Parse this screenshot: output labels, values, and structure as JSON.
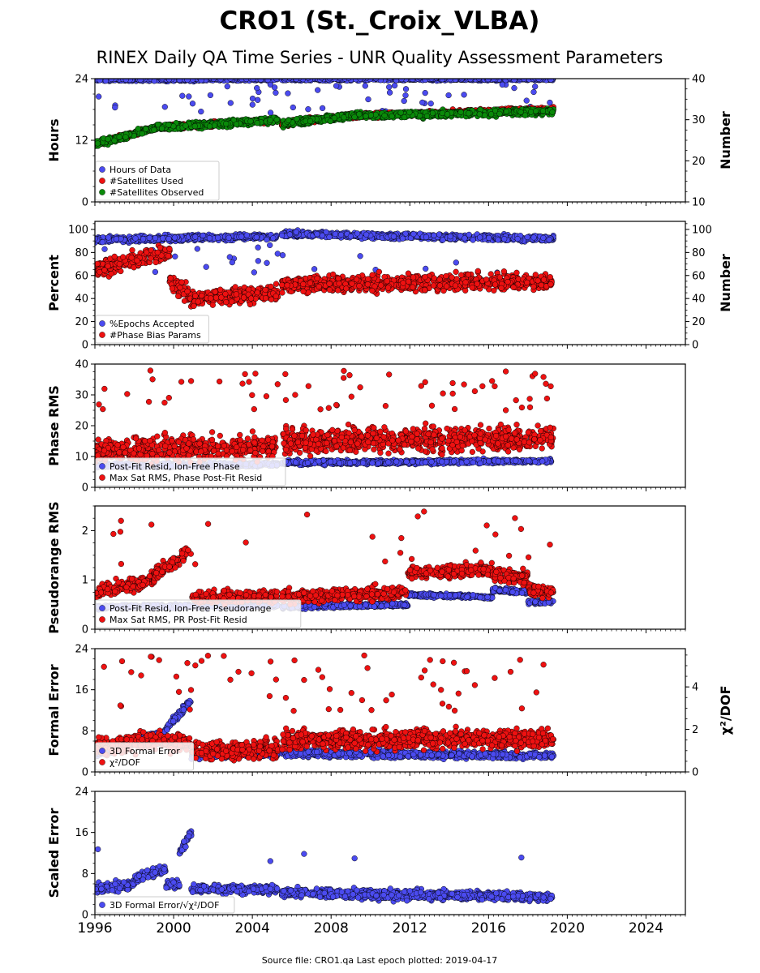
{
  "title": "CRO1 (St._Croix_VLBA)",
  "subtitle": "RINEX Daily QA Time Series - UNR Quality Assessment Parameters",
  "footer": "Source file: CRO1.qa Last epoch plotted: 2019-04-17",
  "colors": {
    "blue": "#4b4bf0",
    "red": "#ee1111",
    "green": "#0a8a0a"
  },
  "chart_data": [
    {
      "type": "scatter",
      "ylabel": "Hours",
      "ylabel_right": "Number",
      "xlim": [
        1996,
        2026
      ],
      "ylim": [
        0,
        24
      ],
      "ylim_right": [
        10,
        40
      ],
      "yticks": [
        "0",
        "12",
        "24"
      ],
      "yticks_right": [
        "10",
        "20",
        "30",
        "40"
      ],
      "legend_loc": "lower-left",
      "series": [
        {
          "name": "Hours of Data",
          "color": "blue",
          "axis": "left",
          "segments": [
            [
              1996.0,
              2005.3,
              23.8,
              23.9
            ],
            [
              2005.5,
              2019.3,
              23.9,
              23.95
            ]
          ],
          "spread": 0.3,
          "outlier_prob": 0.03,
          "outlier_range": [
            17,
            23
          ]
        },
        {
          "name": "#Satellites Used",
          "color": "red",
          "axis": "right",
          "segments": [
            [
              1996.0,
              1999.0,
              24,
              28
            ],
            [
              1999.0,
              2005.3,
              28,
              30
            ],
            [
              2005.5,
              2009.0,
              29,
              31
            ],
            [
              2009.0,
              2019.3,
              31,
              32.5
            ]
          ],
          "spread": 0.6
        },
        {
          "name": "#Satellites Observed",
          "color": "green",
          "axis": "right",
          "segments": [
            [
              1996.0,
              1999.0,
              24,
              28
            ],
            [
              1999.0,
              2005.3,
              28,
              30
            ],
            [
              2005.5,
              2009.0,
              29,
              31
            ],
            [
              2009.0,
              2019.3,
              31,
              32
            ]
          ],
          "spread": 0.8
        }
      ]
    },
    {
      "type": "scatter",
      "ylabel": "Percent",
      "ylabel_right": "Number",
      "xlim": [
        1996,
        2026
      ],
      "ylim": [
        0,
        107
      ],
      "ylim_right": [
        0,
        107
      ],
      "yticks": [
        "0",
        "20",
        "40",
        "60",
        "80",
        "100"
      ],
      "yticks_right": [
        "0",
        "20",
        "40",
        "60",
        "80",
        "100"
      ],
      "legend_loc": "lower-left",
      "series": [
        {
          "name": "%Epochs Accepted",
          "color": "blue",
          "axis": "left",
          "segments": [
            [
              1996.0,
              2005.3,
              91,
              94
            ],
            [
              2005.5,
              2019.3,
              96,
              92
            ]
          ],
          "spread": 2.5,
          "outlier_prob": 0.02,
          "outlier_range": [
            62,
            88
          ]
        },
        {
          "name": "#Phase Bias Params",
          "color": "red",
          "axis": "right",
          "segments": [
            [
              1996.0,
              1999.8,
              65,
              80
            ],
            [
              1999.8,
              2001.0,
              55,
              40
            ],
            [
              2001.0,
              2005.3,
              40,
              45
            ],
            [
              2005.5,
              2019.3,
              52,
              55
            ]
          ],
          "spread": 7
        }
      ]
    },
    {
      "type": "scatter",
      "ylabel": "Phase RMS",
      "xlim": [
        1996,
        2026
      ],
      "ylim": [
        0,
        40
      ],
      "yticks": [
        "0",
        "10",
        "20",
        "30",
        "40"
      ],
      "legend_loc": "lower-left",
      "series": [
        {
          "name": "Post-Fit Resid, Ion-Free Phase",
          "color": "blue",
          "axis": "left",
          "segments": [
            [
              1996.0,
              2005.3,
              7,
              7.5
            ],
            [
              2005.5,
              2019.3,
              8,
              8.5
            ]
          ],
          "spread": 0.7
        },
        {
          "name": "Max Sat RMS, Phase Post-Fit Resid",
          "color": "red",
          "axis": "left",
          "segments": [
            [
              1996.0,
              2005.3,
              12,
              13
            ],
            [
              2005.5,
              2019.3,
              15,
              16
            ]
          ],
          "spread": 4,
          "outlier_prob": 0.04,
          "outlier_range": [
            25,
            38
          ]
        }
      ]
    },
    {
      "type": "scatter",
      "ylabel": "Pseudorange RMS",
      "xlim": [
        1996,
        2026
      ],
      "ylim": [
        0,
        2.5
      ],
      "yticks": [
        "0",
        "1",
        "2"
      ],
      "legend_loc": "lower-left",
      "series": [
        {
          "name": "Post-Fit Resid, Ion-Free Pseudorange",
          "color": "blue",
          "axis": "left",
          "segments": [
            [
              1996.0,
              2005.3,
              0.45,
              0.48
            ],
            [
              2005.5,
              2011.9,
              0.45,
              0.5
            ],
            [
              2011.9,
              2016.2,
              0.7,
              0.65
            ],
            [
              2016.2,
              2018.0,
              0.8,
              0.75
            ],
            [
              2018.0,
              2019.3,
              0.55,
              0.55
            ]
          ],
          "spread": 0.04
        },
        {
          "name": "Max Sat RMS, PR Post-Fit Resid",
          "color": "red",
          "axis": "left",
          "segments": [
            [
              1996.0,
              1999.0,
              0.75,
              1.0
            ],
            [
              1999.0,
              2000.9,
              1.1,
              1.6
            ],
            [
              2000.9,
              2005.3,
              0.65,
              0.65
            ],
            [
              2005.5,
              2011.9,
              0.65,
              0.75
            ],
            [
              2011.9,
              2016.2,
              1.15,
              1.2
            ],
            [
              2016.2,
              2018.0,
              1.1,
              1.05
            ],
            [
              2018.0,
              2019.3,
              0.8,
              0.75
            ]
          ],
          "spread": 0.13,
          "outlier_prob": 0.015,
          "outlier_range": [
            1.3,
            2.4
          ]
        }
      ]
    },
    {
      "type": "scatter",
      "ylabel": "Formal Error",
      "ylabel_right": "χ²/DOF",
      "xlim": [
        1996,
        2026
      ],
      "ylim": [
        0,
        24
      ],
      "ylim_right": [
        0,
        5.8
      ],
      "yticks": [
        "0",
        "8",
        "16",
        "24"
      ],
      "yticks_right": [
        "0",
        "2",
        "4"
      ],
      "legend_loc": "lower-left",
      "series": [
        {
          "name": "3D Formal Error",
          "color": "blue",
          "axis": "left",
          "segments": [
            [
              1996.0,
              1999.5,
              3.5,
              7.5
            ],
            [
              1999.5,
              2000.9,
              8,
              14
            ],
            [
              2000.9,
              2005.3,
              3.2,
              3.5
            ],
            [
              2005.5,
              2019.3,
              3.6,
              3.2
            ]
          ],
          "spread": 0.7
        },
        {
          "name": "χ²/DOF",
          "color": "red",
          "axis": "right",
          "segments": [
            [
              1996.0,
              1999.5,
              1.2,
              1.5
            ],
            [
              1999.5,
              2000.9,
              1.3,
              1.4
            ],
            [
              2000.9,
              2005.3,
              1.0,
              1.1
            ],
            [
              2005.5,
              2019.3,
              1.5,
              1.55
            ]
          ],
          "spread": 0.45,
          "outlier_prob": 0.03,
          "outlier_range": [
            2.8,
            5.5
          ]
        }
      ]
    },
    {
      "type": "scatter",
      "ylabel": "Scaled Error",
      "xlim": [
        1996,
        2026
      ],
      "ylim": [
        0,
        24
      ],
      "yticks": [
        "0",
        "8",
        "16",
        "24"
      ],
      "xticks": [
        "1996",
        "2000",
        "2004",
        "2008",
        "2012",
        "2016",
        "2020",
        "2024"
      ],
      "legend_loc": "lower-left",
      "series": [
        {
          "name": "3D Formal Error/√χ²/DOF",
          "color": "blue",
          "axis": "left",
          "segments": [
            [
              1996.0,
              1998.0,
              5,
              6
            ],
            [
              1998.0,
              1999.6,
              7,
              9
            ],
            [
              1999.6,
              2000.3,
              6,
              6
            ],
            [
              2000.3,
              2000.9,
              12,
              16
            ],
            [
              2000.9,
              2005.3,
              5,
              5
            ],
            [
              2005.5,
              2019.3,
              4.2,
              3.5
            ]
          ],
          "spread": 0.9,
          "outlier_prob": 0.006,
          "outlier_range": [
            9,
            14
          ]
        }
      ]
    }
  ]
}
